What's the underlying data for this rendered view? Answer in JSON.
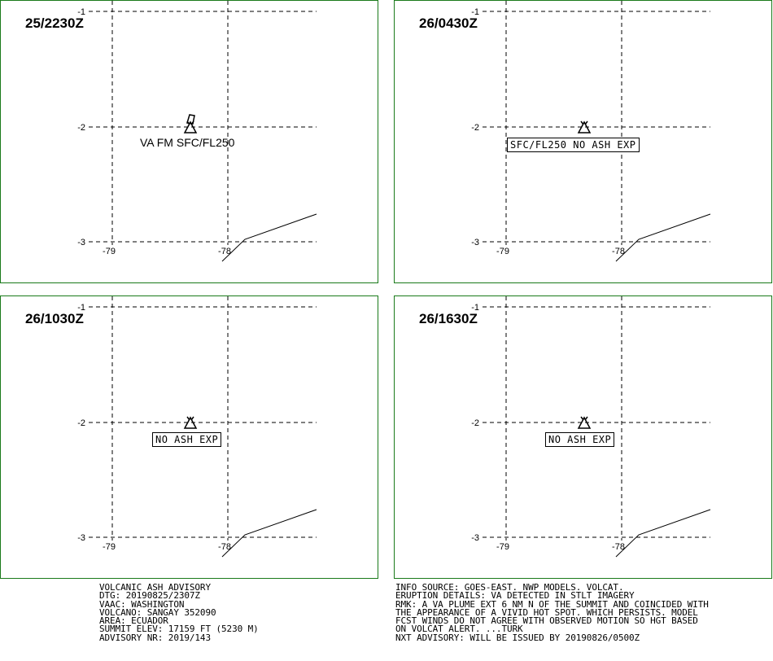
{
  "panels": [
    {
      "time": "25/2230Z",
      "label": "VA FM SFC/FL250",
      "label_style": "plain"
    },
    {
      "time": "26/0430Z",
      "label": "SFC/FL250 NO ASH EXP",
      "label_style": "box"
    },
    {
      "time": "26/1030Z",
      "label": "NO ASH EXP",
      "label_style": "box"
    },
    {
      "time": "26/1630Z",
      "label": "NO ASH EXP",
      "label_style": "box"
    }
  ],
  "axes": {
    "lat_labels": [
      "-1",
      "-2",
      "-3"
    ],
    "lon_labels": [
      "-79",
      "-78"
    ]
  },
  "advisory_left": [
    "VOLCANIC ASH ADVISORY",
    "DTG: 20190825/2307Z",
    "VAAC: WASHINGTON",
    "VOLCANO: SANGAY 352090",
    "AREA: ECUADOR",
    "SUMMIT ELEV: 17159 FT (5230 M)",
    "ADVISORY NR: 2019/143"
  ],
  "advisory_right": [
    "INFO SOURCE: GOES-EAST. NWP MODELS. VOLCAT.",
    "ERUPTION DETAILS: VA DETECTED IN STLT IMAGERY",
    "RMK: A VA PLUME EXT 6 NM N OF THE SUMMIT AND COINCIDED WITH",
    "THE APPEARANCE OF A VIVID HOT SPOT. WHICH PERSISTS. MODEL",
    "FCST WINDS DO NOT AGREE WITH OBSERVED MOTION SO HGT BASED",
    "ON VOLCAT ALERT. ...TURK",
    "NXT ADVISORY: WILL BE ISSUED BY 20190826/0500Z"
  ],
  "colors": {
    "border": "#1a7a1a",
    "lines": "#000000"
  },
  "icons": {
    "volcano": "volcano-icon"
  }
}
